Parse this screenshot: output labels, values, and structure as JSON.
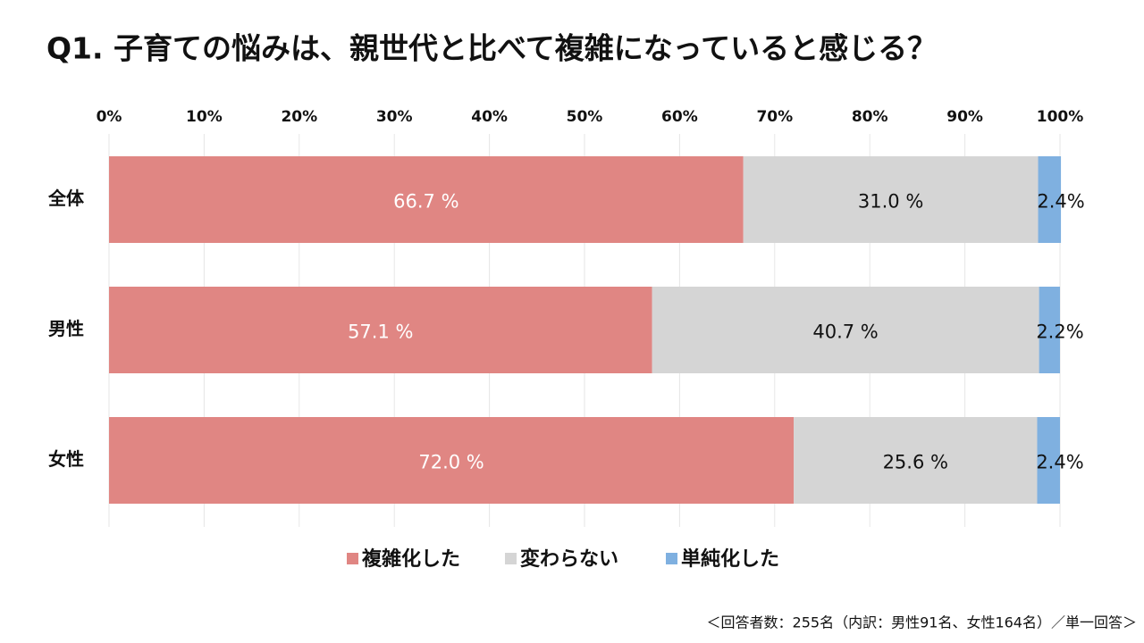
{
  "chart_data": {
    "type": "stacked_bar_horizontal",
    "title": "Q1. 子育ての悩みは、親世代と比べて複雑になっていると感じる？",
    "categories": [
      "全体",
      "男性",
      "女性"
    ],
    "series": [
      {
        "name": "複雑化した",
        "color": "#e08683",
        "values": [
          66.7,
          57.1,
          72.0
        ],
        "value_labels": [
          "66.7 %",
          "57.1 %",
          "72.0 %"
        ]
      },
      {
        "name": "変わらない",
        "color": "#d5d5d5",
        "values": [
          31.0,
          40.7,
          25.6
        ],
        "value_labels": [
          "31.0 %",
          "40.7 %",
          "25.6 %"
        ]
      },
      {
        "name": "単純化した",
        "color": "#7fb0e0",
        "values": [
          2.4,
          2.2,
          2.4
        ],
        "value_labels": [
          "2.4%",
          "2.2%",
          "2.4%"
        ]
      }
    ],
    "xlim": [
      0,
      100
    ],
    "xticks": [
      {
        "value": 0,
        "label": "0%"
      },
      {
        "value": 10,
        "label": "10%"
      },
      {
        "value": 20,
        "label": "20%"
      },
      {
        "value": 30,
        "label": "30%"
      },
      {
        "value": 40,
        "label": "40%"
      },
      {
        "value": 50,
        "label": "50%"
      },
      {
        "value": 60,
        "label": "60%"
      },
      {
        "value": 70,
        "label": "70%"
      },
      {
        "value": 80,
        "label": "80%"
      },
      {
        "value": 90,
        "label": "90%"
      },
      {
        "value": 100,
        "label": "100%"
      }
    ],
    "grid": true,
    "legend": "bottom",
    "note": "＜回答者数：255名（内訳：男性91名、女性164名）／単一回答＞"
  }
}
